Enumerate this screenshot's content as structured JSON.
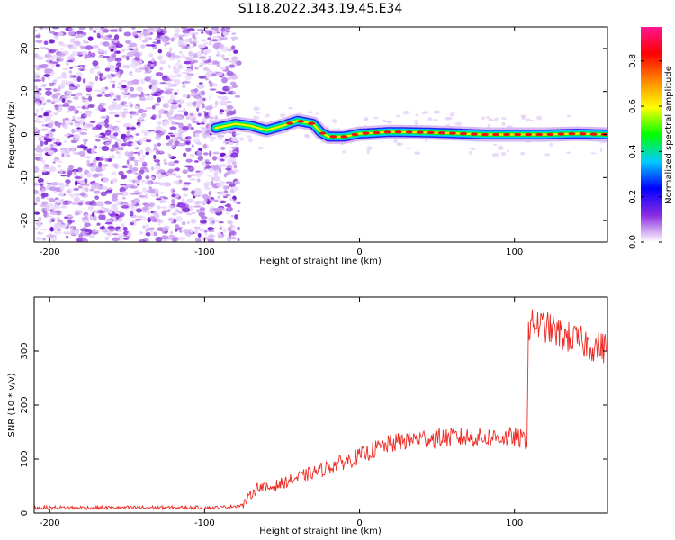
{
  "title": "S118.2022.343.19.45.E34",
  "chart_data": [
    {
      "type": "heatmap",
      "xlabel": "Height of straight line (km)",
      "ylabel": "Frequency (Hz)",
      "xlim": [
        -210,
        160
      ],
      "ylim": [
        -25,
        25
      ],
      "xticks": [
        -200,
        -100,
        0,
        100
      ],
      "yticks": [
        -20,
        -10,
        0,
        10,
        20
      ],
      "noise_region_x": [
        -210,
        -78
      ],
      "ridge": {
        "x": [
          -93,
          -80,
          -70,
          -60,
          -50,
          -40,
          -30,
          -25,
          -20,
          -10,
          0,
          20,
          40,
          60,
          80,
          100,
          120,
          140,
          160
        ],
        "y": [
          1.5,
          2.5,
          2.0,
          1.0,
          2.0,
          3.2,
          2.5,
          0.5,
          -0.5,
          -0.5,
          0.2,
          0.6,
          0.5,
          0.3,
          0.0,
          0.0,
          0.0,
          0.2,
          0.0
        ]
      },
      "colorbar": {
        "label": "Normalized spectral amplitude",
        "range": [
          0,
          0.95
        ],
        "ticks": [
          0.0,
          0.2,
          0.4,
          0.6,
          0.8
        ],
        "colors": [
          "#ffffff",
          "#8a2be2",
          "#0000ff",
          "#00ccff",
          "#00ff00",
          "#ffff00",
          "#ff8800",
          "#ff0000",
          "#ff1493"
        ]
      }
    },
    {
      "type": "line",
      "xlabel": "Height of straight line (km)",
      "ylabel": "SNR (10 * v/v)",
      "xlim": [
        -210,
        160
      ],
      "ylim": [
        0,
        400
      ],
      "xticks": [
        -200,
        -100,
        0,
        100
      ],
      "yticks": [
        0,
        100,
        200,
        300
      ],
      "color": "#ee2a24",
      "series": [
        {
          "x": [
            -210,
            -90,
            -75,
            -70,
            -65,
            -60,
            -50,
            -40,
            -30,
            -20,
            -10,
            0,
            10,
            20,
            30,
            40,
            60,
            80,
            100,
            108,
            109,
            112,
            120,
            130,
            140,
            150,
            160
          ],
          "y": [
            10,
            10,
            15,
            35,
            50,
            45,
            55,
            65,
            75,
            85,
            95,
            105,
            118,
            128,
            135,
            138,
            140,
            140,
            140,
            135,
            340,
            350,
            345,
            330,
            320,
            310,
            305
          ]
        }
      ]
    }
  ]
}
